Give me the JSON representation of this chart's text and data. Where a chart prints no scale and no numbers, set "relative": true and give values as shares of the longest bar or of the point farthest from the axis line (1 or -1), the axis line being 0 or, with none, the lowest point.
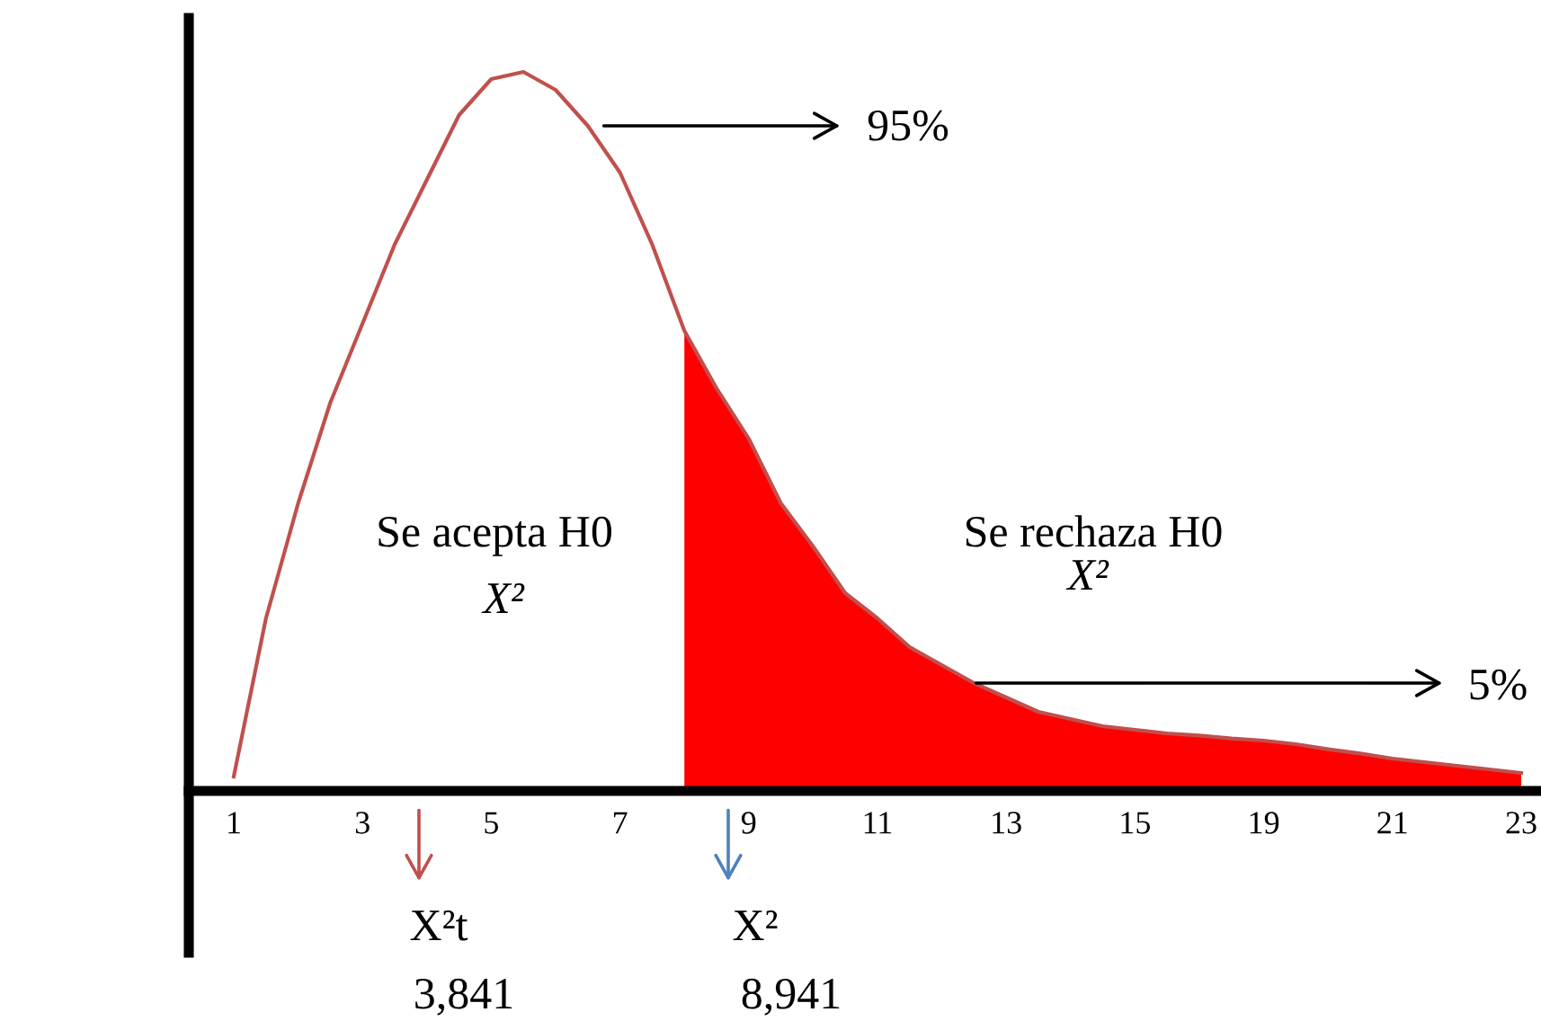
{
  "chart_data": {
    "type": "line",
    "relative": true,
    "categories": [
      "1",
      null,
      null,
      null,
      "3",
      null,
      null,
      null,
      "5",
      null,
      null,
      null,
      "7",
      null,
      null,
      null,
      "9",
      null,
      null,
      null,
      "11",
      null,
      null,
      null,
      "13",
      null,
      null,
      null,
      "15",
      null,
      null,
      null,
      "19",
      null,
      null,
      null,
      "21",
      null,
      null,
      null,
      "23"
    ],
    "series": [
      {
        "color": "#c0504d",
        "values": [
          0.02,
          0.24,
          0.4,
          0.54,
          0.65,
          0.76,
          0.85,
          0.94,
          0.99,
          1.0,
          0.975,
          0.925,
          0.86,
          0.76,
          0.64,
          0.56,
          0.49,
          0.4,
          0.34,
          0.275,
          0.24,
          0.2,
          0.175,
          0.15,
          0.13,
          0.11,
          0.1,
          0.09,
          0.085,
          0.08,
          0.077,
          0.073,
          0.07,
          0.065,
          0.058,
          0.052,
          0.045,
          0.04,
          0.035,
          0.03,
          0.025
        ]
      },
      {
        "type": "area",
        "color": "#ff0000",
        "values": [
          null,
          null,
          null,
          null,
          null,
          null,
          null,
          null,
          null,
          null,
          null,
          null,
          null,
          null,
          0.64,
          0.56,
          0.49,
          0.4,
          0.34,
          0.275,
          0.24,
          0.2,
          0.175,
          0.15,
          0.13,
          0.11,
          0.1,
          0.09,
          0.085,
          0.08,
          0.077,
          0.073,
          0.07,
          0.065,
          0.058,
          0.052,
          0.045,
          0.04,
          0.035,
          0.03,
          0.025
        ]
      }
    ],
    "annotations": [
      "95%",
      "5%",
      "Se acepta H0",
      "X²",
      "Se rechaza H0",
      "X²",
      "X²t",
      "X²",
      "3,841",
      "8,941"
    ],
    "grid": false
  }
}
